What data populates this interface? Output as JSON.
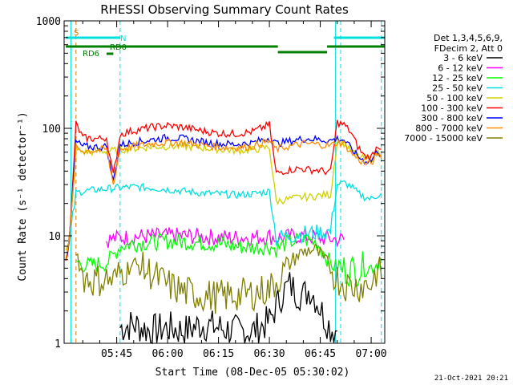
{
  "chart_data": {
    "type": "line",
    "title": "RHESSI Observing Summary Count Rates",
    "xlabel": "Start Time (08-Dec-05 05:30:02)",
    "ylabel": "Count Rate (s⁻¹ detector⁻¹)",
    "x_unit": "minutes after 05:30:02",
    "xlim": [
      -0.5,
      94
    ],
    "ylim": [
      1,
      1000
    ],
    "yscale": "log",
    "x_ticks": [
      {
        "value": 15,
        "label": "05:45"
      },
      {
        "value": 30,
        "label": "06:00"
      },
      {
        "value": 45,
        "label": "06:15"
      },
      {
        "value": 60,
        "label": "06:30"
      },
      {
        "value": 75,
        "label": "06:45"
      },
      {
        "value": 90,
        "label": "07:00"
      }
    ],
    "y_ticks": [
      {
        "value": 1,
        "label": "1"
      },
      {
        "value": 10,
        "label": "10"
      },
      {
        "value": 100,
        "label": "100"
      },
      {
        "value": 1000,
        "label": "1000"
      }
    ],
    "legend_header": [
      "Det 1,3,4,5,6,9,",
      "FDecim 2, Att 0"
    ],
    "legend_position": "right",
    "timestamp": "21-Oct-2021 20:21",
    "flags": [
      {
        "label": "S",
        "color": "#e07800",
        "x_start": 0,
        "x_end": 0
      },
      {
        "label": "N",
        "color": "#00e0e0",
        "x_start": 0,
        "x_end": 16,
        "x_start2": 79,
        "x_end2": 94
      },
      {
        "label": "RD0",
        "color": "#008000",
        "x_start": 0,
        "x_end": 62.5,
        "x_start2": 62.5,
        "x_end2": 77,
        "x_start3": 77,
        "x_end3": 94
      },
      {
        "label": "RD6",
        "color": "#008000",
        "x_start": 12,
        "x_end": 14
      }
    ],
    "vlines": [
      {
        "x": 1.5,
        "color": "#00e0e0",
        "style": "solid"
      },
      {
        "x": 79.5,
        "color": "#00e0e0",
        "style": "solid"
      },
      {
        "x": 3,
        "color": "#e07800",
        "style": "dashed"
      },
      {
        "x": 16,
        "color": "#00e0e0",
        "style": "dashed"
      },
      {
        "x": 81,
        "color": "#00e0e0",
        "style": "dashed"
      },
      {
        "x": 93,
        "color": "#00e0e0",
        "style": "dashed"
      }
    ],
    "series": [
      {
        "name": "3 - 6 keV",
        "color": "#000000",
        "x": [
          16,
          20,
          25,
          30,
          35,
          40,
          45,
          50,
          55,
          60,
          62,
          64,
          66,
          68,
          70,
          72,
          74,
          76,
          78,
          80
        ],
        "y": [
          1.4,
          1.5,
          1.3,
          1.4,
          1.3,
          1.5,
          1.4,
          1.3,
          1.3,
          1.6,
          2.2,
          3.0,
          3.5,
          3.0,
          2.8,
          3.2,
          2.5,
          1.8,
          1.4,
          1.3
        ]
      },
      {
        "name": "6 - 12 keV",
        "color": "#ff00ff",
        "x": [
          12,
          14,
          16,
          20,
          25,
          30,
          35,
          40,
          45,
          50,
          55,
          60,
          62,
          64,
          66,
          68,
          70,
          72,
          74,
          76,
          78,
          80,
          82
        ],
        "y": [
          9.2,
          9.4,
          9.6,
          9.8,
          9.9,
          10,
          10,
          9.8,
          9.7,
          9.6,
          9.7,
          9.9,
          9.5,
          9.6,
          9.8,
          10,
          9.9,
          9.8,
          9.6,
          9.5,
          9.4,
          9.3,
          9.2
        ]
      },
      {
        "name": "12 - 25 keV",
        "color": "#00ff00",
        "x": [
          3,
          5,
          7,
          10,
          12,
          14,
          16,
          20,
          25,
          30,
          35,
          40,
          45,
          50,
          55,
          60,
          62,
          64,
          66,
          68,
          70,
          72,
          74,
          76,
          78,
          80,
          82,
          84,
          86,
          88,
          90,
          92,
          93
        ],
        "y": [
          5.8,
          5.4,
          5.3,
          5.5,
          5.6,
          6.5,
          8.0,
          8.5,
          8.7,
          8.9,
          8.8,
          8.6,
          8.4,
          8.0,
          7.8,
          8.0,
          7.5,
          8.2,
          8.8,
          9.0,
          9.2,
          9.0,
          8.6,
          7.0,
          5.5,
          5.0,
          4.9,
          4.8,
          4.9,
          5.0,
          5.1,
          5.6,
          6.2
        ]
      },
      {
        "name": "25 - 50 keV",
        "color": "#00e0e0",
        "x": [
          0,
          1,
          3,
          5,
          10,
          13,
          16,
          20,
          25,
          30,
          35,
          40,
          45,
          50,
          55,
          60,
          62,
          64,
          66,
          68,
          70,
          72,
          74,
          76,
          78,
          80,
          82,
          84,
          86,
          88,
          90,
          92,
          93
        ],
        "y": [
          7,
          8,
          25,
          26,
          27,
          27.5,
          28,
          28.5,
          28,
          27,
          26,
          25,
          24.5,
          24,
          24.5,
          26,
          9.5,
          9.8,
          10,
          10.2,
          10.5,
          10.6,
          10.7,
          10.8,
          10.9,
          30,
          31,
          29,
          25,
          23,
          22,
          24,
          25
        ]
      },
      {
        "name": "50 - 100 keV",
        "color": "#d0d000",
        "x": [
          0,
          1,
          3,
          5,
          10,
          14,
          16,
          20,
          25,
          30,
          35,
          40,
          45,
          50,
          55,
          60,
          62,
          64,
          66,
          68,
          70,
          72,
          74,
          76,
          78,
          80,
          82,
          84,
          86,
          88,
          90,
          92,
          93
        ],
        "y": [
          7,
          8,
          64,
          60,
          61,
          62,
          63,
          65,
          67,
          68,
          68,
          66,
          64,
          62,
          63,
          67,
          21,
          21.5,
          22,
          22.5,
          23,
          23,
          23.5,
          24,
          24,
          76,
          72,
          62,
          55,
          52,
          52,
          60,
          56
        ]
      },
      {
        "name": "100 - 300 keV",
        "color": "#ff0000",
        "x": [
          0,
          1,
          3,
          5,
          8,
          10,
          12,
          14,
          16,
          18,
          20,
          25,
          30,
          35,
          40,
          45,
          50,
          55,
          60,
          62,
          64,
          66,
          68,
          70,
          72,
          74,
          76,
          78,
          80,
          82,
          84,
          86,
          88,
          90,
          92,
          93
        ],
        "y": [
          7,
          8,
          110,
          82,
          80,
          80,
          82,
          36,
          88,
          92,
          95,
          102,
          106,
          102,
          95,
          90,
          89,
          93,
          108,
          38,
          40,
          41,
          42,
          42,
          41,
          41,
          40,
          39,
          114,
          108,
          92,
          68,
          55,
          54,
          70,
          64
        ]
      },
      {
        "name": "300 - 800 keV",
        "color": "#0000ff",
        "x": [
          0,
          1,
          3,
          5,
          8,
          10,
          12,
          14,
          16,
          20,
          25,
          30,
          35,
          40,
          45,
          50,
          55,
          60,
          62,
          64,
          66,
          68,
          70,
          72,
          74,
          76,
          78,
          80,
          82,
          84,
          86,
          88,
          90,
          92,
          93
        ],
        "y": [
          7,
          8,
          75,
          68,
          67,
          67,
          68,
          32,
          70,
          74,
          78,
          82,
          80,
          75,
          72,
          71,
          73,
          82,
          72,
          74,
          76,
          78,
          80,
          80,
          79,
          78,
          77,
          80,
          78,
          65,
          55,
          50,
          50,
          62,
          55
        ]
      },
      {
        "name": "800 - 7000 keV",
        "color": "#ff8c00",
        "x": [
          0,
          1,
          3,
          5,
          8,
          10,
          12,
          14,
          16,
          20,
          25,
          30,
          35,
          40,
          45,
          50,
          55,
          60,
          62,
          64,
          66,
          68,
          70,
          72,
          74,
          76,
          78,
          80,
          82,
          84,
          86,
          88,
          90,
          92,
          93
        ],
        "y": [
          7,
          8,
          66,
          62,
          62,
          63,
          64,
          30,
          64,
          68,
          72,
          74,
          73,
          70,
          67,
          66,
          68,
          76,
          64,
          66,
          68,
          70,
          72,
          72,
          71,
          70,
          69,
          74,
          72,
          60,
          52,
          47,
          47,
          58,
          52
        ]
      },
      {
        "name": "7000 - 15000 keV",
        "color": "#808000",
        "x": [
          3,
          5,
          8,
          10,
          12,
          14,
          16,
          20,
          25,
          30,
          35,
          40,
          45,
          50,
          55,
          60,
          62,
          64,
          66,
          68,
          70,
          72,
          74,
          76,
          78,
          80,
          82,
          84,
          86,
          88,
          90,
          92,
          93
        ],
        "y": [
          7.5,
          4.2,
          3.8,
          3.9,
          4.0,
          3.8,
          4.5,
          5.5,
          4.5,
          3.5,
          3.0,
          2.8,
          2.7,
          2.8,
          2.9,
          3.2,
          3.8,
          4.5,
          5.5,
          6.5,
          7.0,
          7.5,
          7.2,
          6.0,
          5.0,
          4.0,
          3.6,
          3.4,
          3.4,
          3.5,
          3.6,
          5.0,
          4.0
        ]
      }
    ]
  }
}
